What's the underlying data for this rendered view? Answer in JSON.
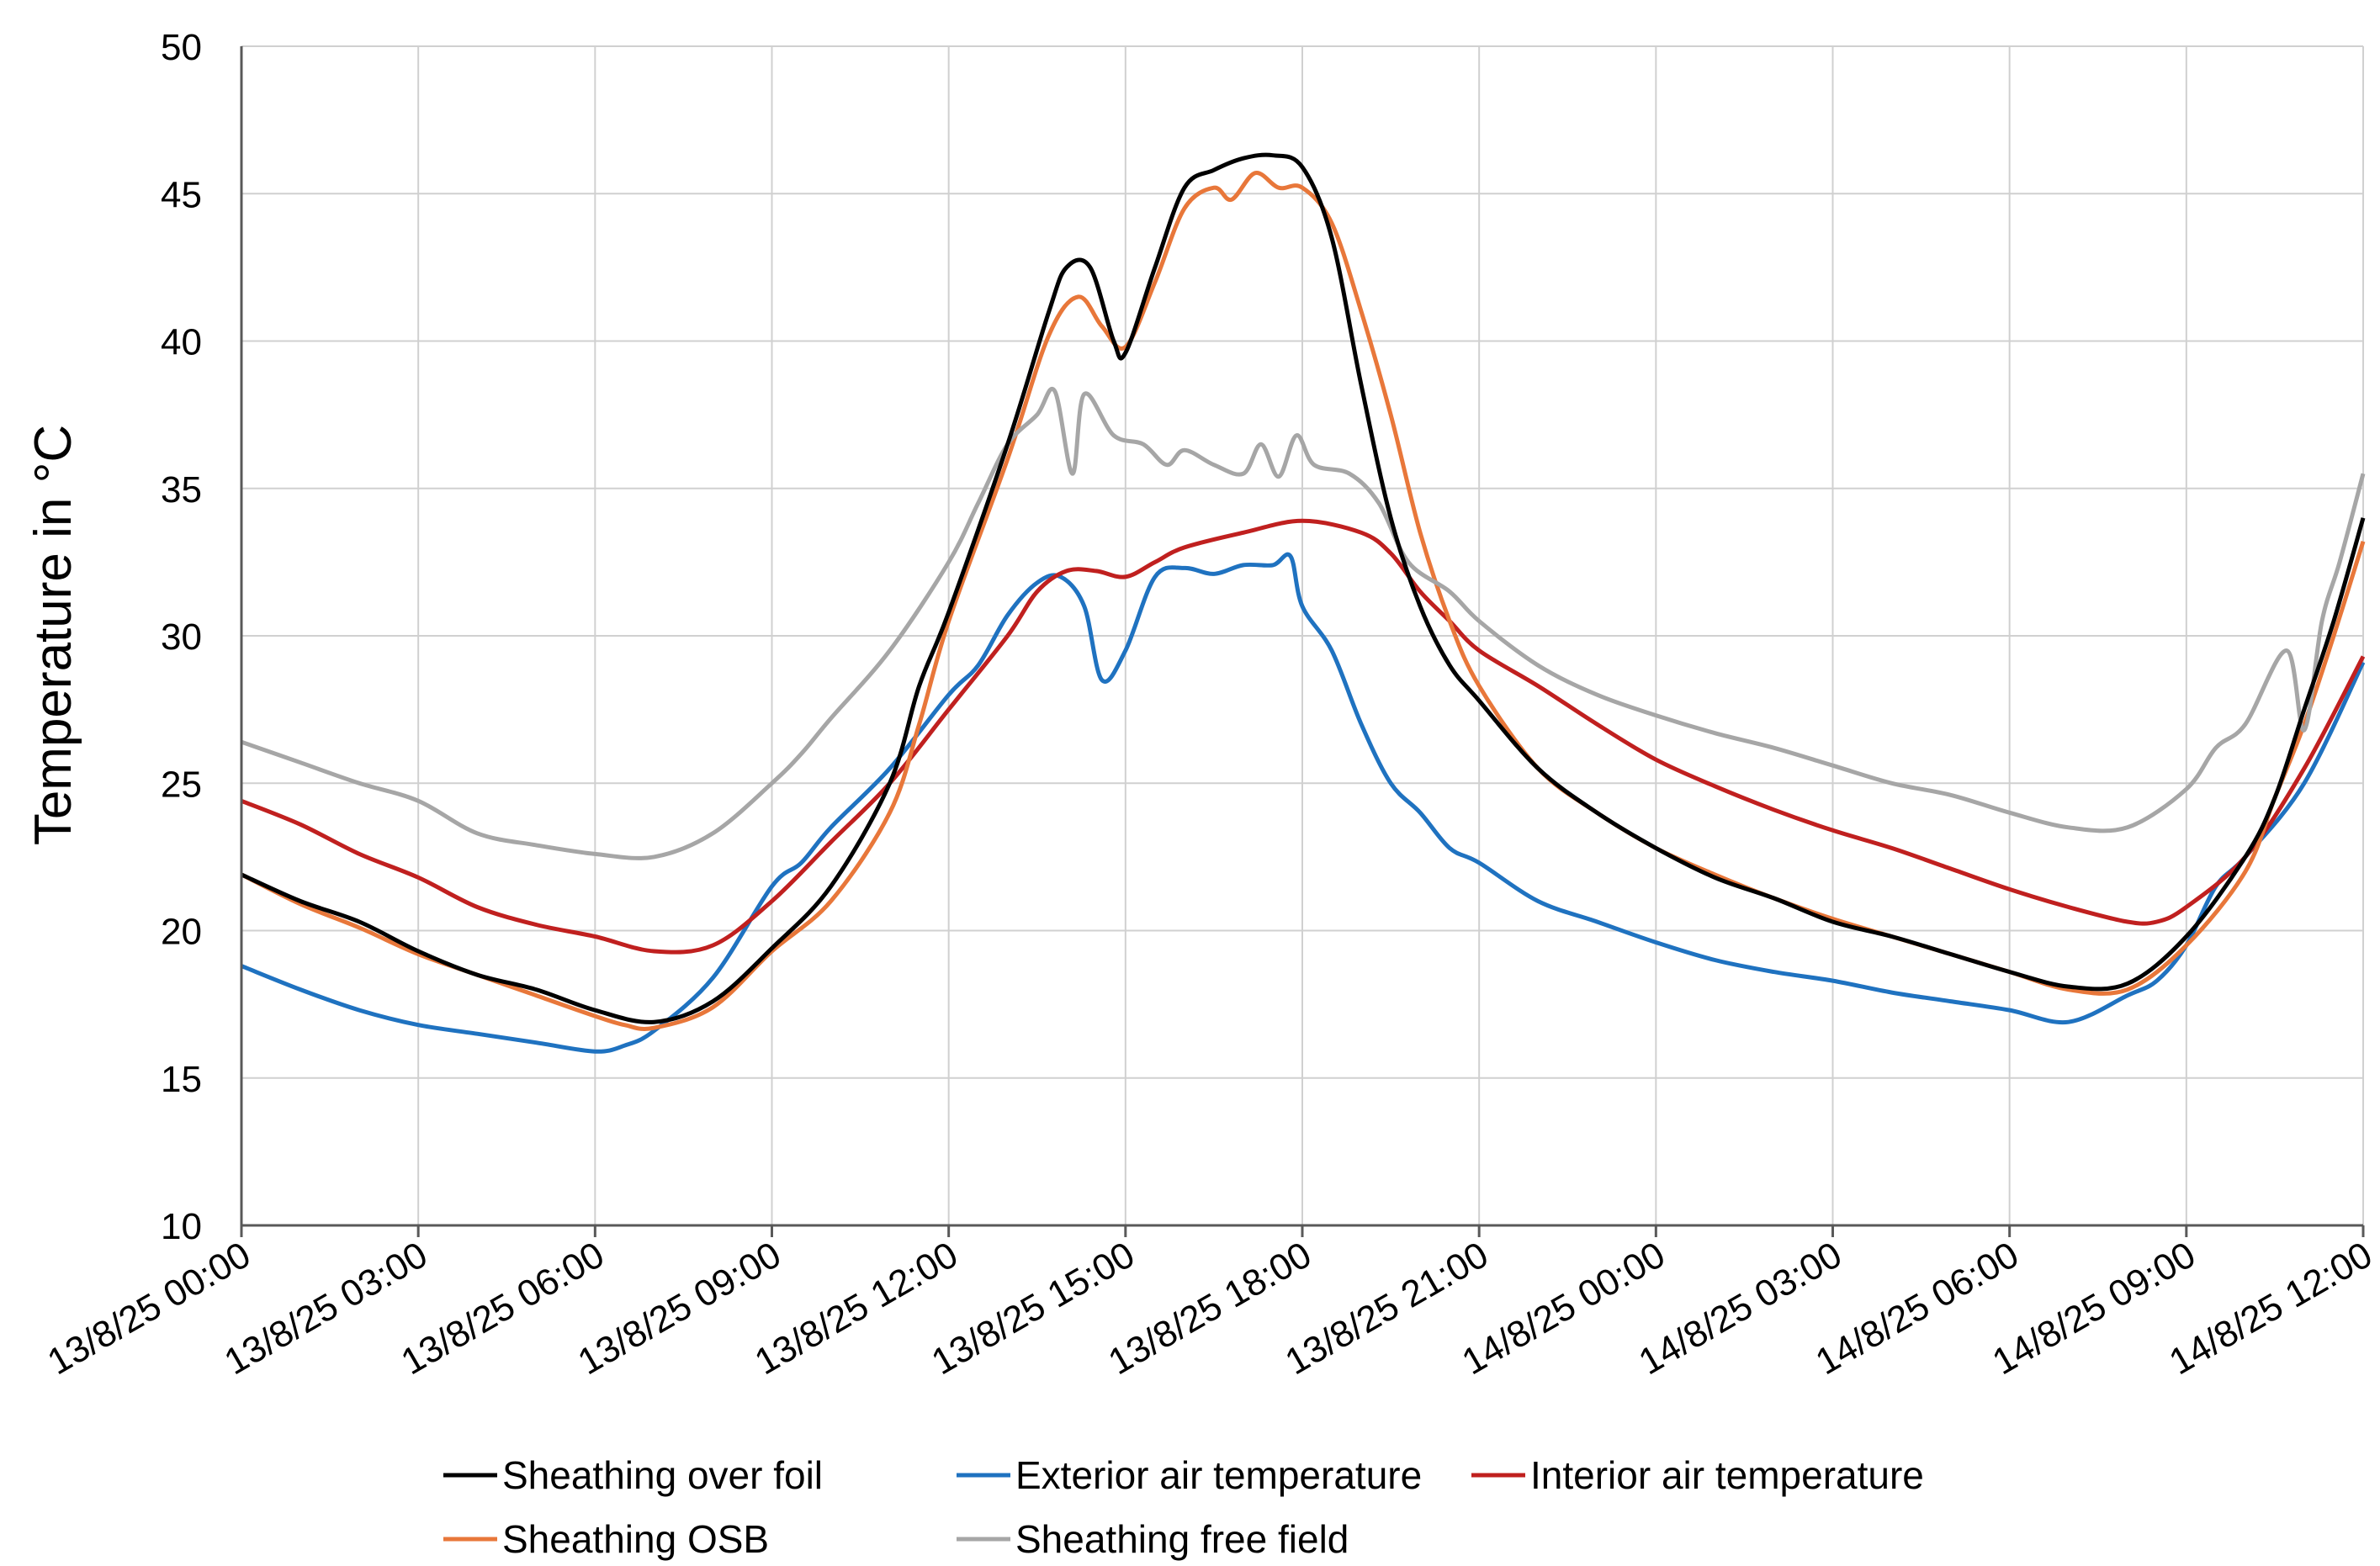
{
  "chart_data": {
    "type": "line",
    "title": "",
    "xlabel": "",
    "ylabel": "Temperature in °C",
    "ylim": [
      10,
      50
    ],
    "yticks": [
      10,
      15,
      20,
      25,
      30,
      35,
      40,
      45,
      50
    ],
    "xlim": [
      0,
      36
    ],
    "grid": true,
    "legend_position": "bottom",
    "x_tick_hours": [
      0,
      3,
      6,
      9,
      12,
      15,
      18,
      21,
      24,
      27,
      30,
      33,
      36
    ],
    "x_tick_labels": [
      "13/8/25 00:00",
      "13/8/25 03:00",
      "13/8/25 06:00",
      "13/8/25 09:00",
      "13/8/25 12:00",
      "13/8/25 15:00",
      "13/8/25 18:00",
      "13/8/25 21:00",
      "14/8/25 00:00",
      "14/8/25 03:00",
      "14/8/25 06:00",
      "14/8/25 09:00",
      "14/8/25 12:00"
    ],
    "x_unit": "hours since 13/8/25 00:00",
    "series": [
      {
        "name": "Sheathing over foil",
        "color": "#000000",
        "points": [
          [
            0,
            21.9
          ],
          [
            1,
            21.0
          ],
          [
            2,
            20.3
          ],
          [
            3,
            19.3
          ],
          [
            4,
            18.5
          ],
          [
            5,
            18.0
          ],
          [
            6,
            17.3
          ],
          [
            7,
            16.9
          ],
          [
            8,
            17.6
          ],
          [
            9,
            19.4
          ],
          [
            10,
            21.5
          ],
          [
            11,
            25.0
          ],
          [
            11.5,
            28.3
          ],
          [
            12,
            30.8
          ],
          [
            13,
            36.5
          ],
          [
            13.7,
            41.0
          ],
          [
            14.0,
            42.5
          ],
          [
            14.4,
            42.5
          ],
          [
            14.8,
            40.0
          ],
          [
            15.0,
            39.6
          ],
          [
            15.5,
            42.5
          ],
          [
            16.0,
            45.2
          ],
          [
            16.5,
            45.8
          ],
          [
            17.0,
            46.2
          ],
          [
            17.5,
            46.3
          ],
          [
            18.0,
            45.9
          ],
          [
            18.5,
            43.5
          ],
          [
            19.0,
            38.5
          ],
          [
            19.5,
            34.0
          ],
          [
            20.0,
            31.0
          ],
          [
            20.5,
            29.0
          ],
          [
            21.0,
            27.8
          ],
          [
            22.0,
            25.5
          ],
          [
            23.0,
            24.0
          ],
          [
            24.0,
            22.8
          ],
          [
            25.0,
            21.8
          ],
          [
            26.0,
            21.1
          ],
          [
            27.0,
            20.3
          ],
          [
            28.0,
            19.8
          ],
          [
            29.0,
            19.2
          ],
          [
            30.0,
            18.6
          ],
          [
            31.0,
            18.1
          ],
          [
            32.0,
            18.2
          ],
          [
            33.0,
            19.8
          ],
          [
            34.0,
            22.5
          ],
          [
            34.5,
            24.5
          ],
          [
            35.0,
            27.5
          ],
          [
            35.5,
            30.5
          ],
          [
            36.0,
            34.0
          ]
        ]
      },
      {
        "name": "Exterior air temperature",
        "color": "#1f72c0",
        "points": [
          [
            0,
            18.8
          ],
          [
            1,
            18.0
          ],
          [
            2,
            17.3
          ],
          [
            3,
            16.8
          ],
          [
            4,
            16.5
          ],
          [
            5,
            16.2
          ],
          [
            6,
            15.9
          ],
          [
            6.5,
            16.1
          ],
          [
            7,
            16.6
          ],
          [
            8,
            18.4
          ],
          [
            9,
            21.5
          ],
          [
            9.5,
            22.3
          ],
          [
            10,
            23.5
          ],
          [
            11,
            25.5
          ],
          [
            12,
            28.0
          ],
          [
            12.5,
            29.0
          ],
          [
            13,
            30.7
          ],
          [
            13.5,
            31.8
          ],
          [
            13.9,
            32.0
          ],
          [
            14.3,
            31.0
          ],
          [
            14.6,
            28.5
          ],
          [
            15.0,
            29.5
          ],
          [
            15.5,
            32.0
          ],
          [
            16.0,
            32.3
          ],
          [
            16.5,
            32.1
          ],
          [
            17.0,
            32.4
          ],
          [
            17.5,
            32.4
          ],
          [
            17.8,
            32.7
          ],
          [
            18.0,
            31.0
          ],
          [
            18.5,
            29.5
          ],
          [
            19.0,
            27.0
          ],
          [
            19.5,
            25.0
          ],
          [
            20.0,
            24.0
          ],
          [
            20.5,
            22.8
          ],
          [
            21.0,
            22.3
          ],
          [
            22.0,
            21.0
          ],
          [
            23.0,
            20.3
          ],
          [
            24.0,
            19.6
          ],
          [
            25.0,
            19.0
          ],
          [
            26.0,
            18.6
          ],
          [
            27.0,
            18.3
          ],
          [
            28.0,
            17.9
          ],
          [
            29.0,
            17.6
          ],
          [
            30.0,
            17.3
          ],
          [
            31.0,
            16.9
          ],
          [
            32.0,
            17.8
          ],
          [
            32.5,
            18.3
          ],
          [
            33.0,
            19.5
          ],
          [
            33.5,
            21.5
          ],
          [
            34.0,
            22.5
          ],
          [
            35.0,
            25.0
          ],
          [
            36.0,
            29.1
          ]
        ]
      },
      {
        "name": "Interior air temperature",
        "color": "#c0201f",
        "points": [
          [
            0,
            24.4
          ],
          [
            1,
            23.6
          ],
          [
            2,
            22.6
          ],
          [
            3,
            21.8
          ],
          [
            4,
            20.8
          ],
          [
            5,
            20.2
          ],
          [
            6,
            19.8
          ],
          [
            7,
            19.3
          ],
          [
            8,
            19.5
          ],
          [
            9,
            21.0
          ],
          [
            10,
            23.0
          ],
          [
            11,
            25.0
          ],
          [
            12,
            27.5
          ],
          [
            13,
            30.0
          ],
          [
            13.5,
            31.5
          ],
          [
            14.0,
            32.2
          ],
          [
            14.5,
            32.2
          ],
          [
            15.0,
            32.0
          ],
          [
            15.5,
            32.5
          ],
          [
            16.0,
            33.0
          ],
          [
            17.0,
            33.5
          ],
          [
            18.0,
            33.9
          ],
          [
            19.0,
            33.5
          ],
          [
            19.5,
            32.8
          ],
          [
            20.0,
            31.5
          ],
          [
            20.5,
            30.5
          ],
          [
            21.0,
            29.5
          ],
          [
            22.0,
            28.3
          ],
          [
            23.0,
            27.0
          ],
          [
            24.0,
            25.8
          ],
          [
            25.0,
            24.9
          ],
          [
            26.0,
            24.1
          ],
          [
            27.0,
            23.4
          ],
          [
            28.0,
            22.8
          ],
          [
            29.0,
            22.1
          ],
          [
            30.0,
            21.4
          ],
          [
            31.0,
            20.8
          ],
          [
            32.0,
            20.3
          ],
          [
            32.5,
            20.3
          ],
          [
            33.0,
            20.8
          ],
          [
            34.0,
            22.5
          ],
          [
            35.0,
            25.5
          ],
          [
            36.0,
            29.3
          ]
        ]
      },
      {
        "name": "Sheathing OSB",
        "color": "#e8773a",
        "points": [
          [
            0,
            21.9
          ],
          [
            1,
            20.9
          ],
          [
            2,
            20.1
          ],
          [
            3,
            19.2
          ],
          [
            4,
            18.5
          ],
          [
            5,
            17.8
          ],
          [
            6,
            17.1
          ],
          [
            6.5,
            16.8
          ],
          [
            7,
            16.7
          ],
          [
            8,
            17.4
          ],
          [
            9,
            19.3
          ],
          [
            10,
            21.0
          ],
          [
            11,
            24.0
          ],
          [
            11.5,
            27.0
          ],
          [
            12,
            30.5
          ],
          [
            13,
            36.0
          ],
          [
            13.7,
            40.2
          ],
          [
            14.2,
            41.5
          ],
          [
            14.6,
            40.5
          ],
          [
            15.0,
            39.8
          ],
          [
            15.5,
            42.0
          ],
          [
            16.0,
            44.5
          ],
          [
            16.5,
            45.2
          ],
          [
            16.8,
            44.8
          ],
          [
            17.2,
            45.7
          ],
          [
            17.6,
            45.2
          ],
          [
            18.0,
            45.2
          ],
          [
            18.5,
            44.0
          ],
          [
            19.0,
            41.0
          ],
          [
            19.5,
            37.5
          ],
          [
            20.0,
            33.5
          ],
          [
            20.5,
            30.5
          ],
          [
            21.0,
            28.3
          ],
          [
            22.0,
            25.5
          ],
          [
            23.0,
            24.0
          ],
          [
            24.0,
            22.8
          ],
          [
            25.0,
            21.9
          ],
          [
            26.0,
            21.1
          ],
          [
            27.0,
            20.4
          ],
          [
            28.0,
            19.8
          ],
          [
            29.0,
            19.2
          ],
          [
            30.0,
            18.6
          ],
          [
            31.0,
            18.0
          ],
          [
            32.0,
            18.0
          ],
          [
            33.0,
            19.5
          ],
          [
            34.0,
            22.0
          ],
          [
            34.5,
            24.5
          ],
          [
            35.0,
            27.0
          ],
          [
            35.5,
            30.0
          ],
          [
            36.0,
            33.2
          ]
        ]
      },
      {
        "name": "Sheathing free field",
        "color": "#a6a6a6",
        "points": [
          [
            0,
            26.4
          ],
          [
            1,
            25.7
          ],
          [
            2,
            25.0
          ],
          [
            3,
            24.4
          ],
          [
            4,
            23.3
          ],
          [
            5,
            22.9
          ],
          [
            6,
            22.6
          ],
          [
            7,
            22.5
          ],
          [
            8,
            23.3
          ],
          [
            9,
            25.0
          ],
          [
            9.5,
            26.0
          ],
          [
            10,
            27.2
          ],
          [
            11,
            29.5
          ],
          [
            12,
            32.5
          ],
          [
            12.5,
            34.5
          ],
          [
            13,
            36.5
          ],
          [
            13.5,
            37.5
          ],
          [
            13.8,
            38.3
          ],
          [
            14.1,
            35.5
          ],
          [
            14.3,
            38.2
          ],
          [
            14.8,
            36.8
          ],
          [
            15.3,
            36.5
          ],
          [
            15.7,
            35.8
          ],
          [
            16.0,
            36.3
          ],
          [
            16.5,
            35.8
          ],
          [
            17.0,
            35.5
          ],
          [
            17.3,
            36.5
          ],
          [
            17.6,
            35.4
          ],
          [
            17.9,
            36.8
          ],
          [
            18.2,
            35.8
          ],
          [
            18.8,
            35.5
          ],
          [
            19.3,
            34.5
          ],
          [
            19.8,
            32.5
          ],
          [
            20.5,
            31.5
          ],
          [
            21.0,
            30.5
          ],
          [
            22.0,
            29.0
          ],
          [
            23.0,
            28.0
          ],
          [
            24.0,
            27.3
          ],
          [
            25.0,
            26.7
          ],
          [
            26.0,
            26.2
          ],
          [
            27.0,
            25.6
          ],
          [
            28.0,
            25.0
          ],
          [
            29.0,
            24.6
          ],
          [
            30.0,
            24.0
          ],
          [
            31.0,
            23.5
          ],
          [
            32.0,
            23.5
          ],
          [
            33.0,
            24.8
          ],
          [
            33.5,
            26.2
          ],
          [
            34.0,
            27.0
          ],
          [
            34.7,
            29.5
          ],
          [
            35.0,
            26.8
          ],
          [
            35.3,
            30.5
          ],
          [
            35.6,
            32.5
          ],
          [
            36.0,
            35.5
          ]
        ]
      }
    ]
  }
}
